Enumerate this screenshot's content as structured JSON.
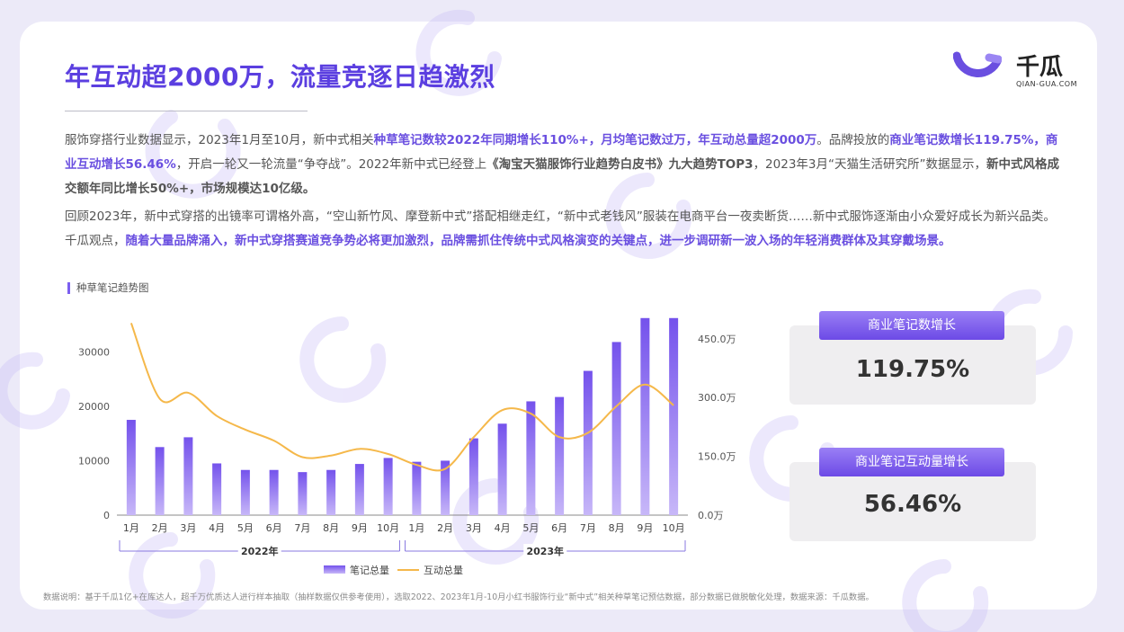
{
  "title": "年互动超2000万，流量竞逐日趋激烈",
  "logo": {
    "name": "千瓜",
    "sub": "QIAN-GUA.COM"
  },
  "paragraph1": {
    "s1": "服饰穿搭行业数据显示，2023年1月至10月，新中式相关",
    "h1": "种草笔记数较2022年同期增长110%+，月均笔记数过万，年互动总量超2000万",
    "s2": "。品牌投放的",
    "h2": "商业笔记数增长119.75%，商业互动增长56.46%",
    "s3": "，开启一轮又一轮流量“争夺战”。2022年新中式已经登上",
    "b1": "《淘宝天猫服饰行业趋势白皮书》九大趋势TOP3",
    "s4": "，2023年3月“天猫生活研究所”数据显示，",
    "b2": "新中式风格成交额年同比增长50%+，市场规模达10亿级。"
  },
  "paragraph2": {
    "s1": "回顾2023年，新中式穿搭的出镜率可谓格外高，“空山新竹风、摩登新中式”搭配相继走红，“新中式老钱风”服装在电商平台一夜卖断货……新中式服饰逐渐由小众爱好成长为新兴品类。千瓜观点，",
    "h1": "随着大量品牌涌入，新中式穿搭赛道竞争势必将更加激烈，品牌需抓住传统中式风格演变的关键点，进一步调研新一波入场的年轻消费群体及其穿戴场景。"
  },
  "chart_title": "种草笔记趋势图",
  "stats": [
    {
      "label": "商业笔记数增长",
      "value": "119.75%"
    },
    {
      "label": "商业笔记互动量增长",
      "value": "56.46%"
    }
  ],
  "footnote": "数据说明：基于千瓜1亿+在库达人，超千万优质达人进行样本抽取（抽样数据仅供参考使用），选取2022、2023年1月-10月小红书服饰行业“新中式”相关种草笔记预估数据，部分数据已做脱敏化处理，数据来源：千瓜数据。",
  "colors": {
    "accent": "#5b3fe0",
    "bar": "#7b5ff0",
    "line": "#f5b84a"
  },
  "chart_data": {
    "type": "bar+line",
    "categories": [
      "1月",
      "2月",
      "3月",
      "4月",
      "5月",
      "6月",
      "7月",
      "8月",
      "9月",
      "10月",
      "1月",
      "2月",
      "3月",
      "4月",
      "5月",
      "6月",
      "7月",
      "8月",
      "9月",
      "10月"
    ],
    "groups": [
      {
        "label": "2022年",
        "from": 0,
        "to": 9
      },
      {
        "label": "2023年",
        "from": 10,
        "to": 19
      }
    ],
    "series": [
      {
        "name": "笔记总量",
        "type": "bar",
        "axis": "left",
        "values": [
          17500,
          12500,
          14300,
          9500,
          8300,
          8300,
          7900,
          8300,
          9400,
          10500,
          9800,
          10000,
          14100,
          16800,
          20900,
          21700,
          26500,
          31800,
          36200,
          36200
        ]
      },
      {
        "name": "互动总量",
        "type": "line",
        "axis": "right",
        "values": [
          4900000,
          2970000,
          3120000,
          2530000,
          2180000,
          1900000,
          1480000,
          1520000,
          1690000,
          1560000,
          1280000,
          1180000,
          1990000,
          2680000,
          2590000,
          1990000,
          2100000,
          2780000,
          3330000,
          2800000
        ]
      }
    ],
    "y_left": {
      "ticks": [
        "0",
        "10000",
        "20000",
        "30000"
      ],
      "range": [
        0,
        36000
      ]
    },
    "y_right": {
      "ticks": [
        "0.0万",
        "150.0万",
        "300.0万",
        "450.0万"
      ],
      "range": [
        0,
        5000000
      ]
    },
    "legend": "bottom"
  }
}
